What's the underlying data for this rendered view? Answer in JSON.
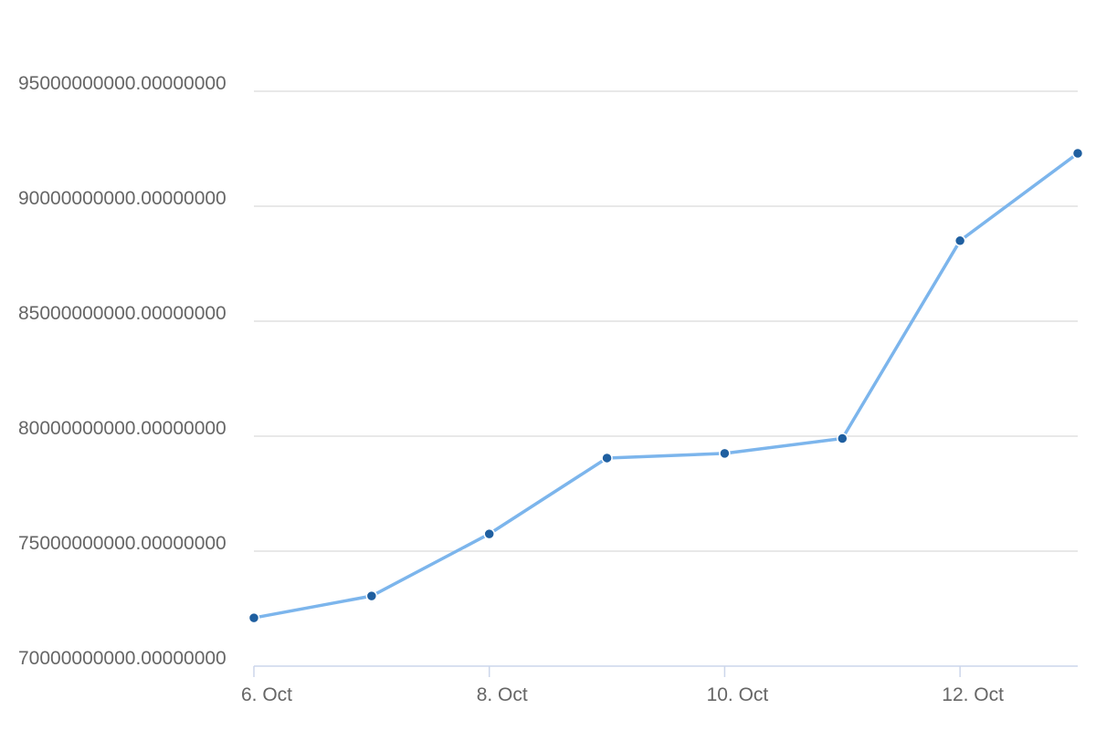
{
  "chart_data": {
    "type": "line",
    "title": "",
    "xlabel": "",
    "ylabel": "",
    "x": [
      "6. Oct",
      "7. Oct",
      "8. Oct",
      "9. Oct",
      "10. Oct",
      "11. Oct",
      "12. Oct",
      "13. Oct"
    ],
    "x_tick_labels": [
      "6. Oct",
      "8. Oct",
      "10. Oct",
      "12. Oct"
    ],
    "y_tick_labels": [
      "70000000000.00000000",
      "75000000000.00000000",
      "80000000000.00000000",
      "85000000000.00000000",
      "90000000000.00000000",
      "95000000000.00000000"
    ],
    "y_ticks": [
      70000000000,
      75000000000,
      80000000000,
      85000000000,
      90000000000,
      95000000000
    ],
    "ylim": [
      70000000000,
      95000000000
    ],
    "grid": true,
    "legend": "none",
    "series": [
      {
        "values": [
          72100000000,
          73050000000,
          75750000000,
          79050000000,
          79250000000,
          79900000000,
          88500000000,
          92300000000
        ]
      }
    ],
    "colors": {
      "line": "#7cb5ec",
      "marker": "#1f5fa0",
      "grid": "#e0e0e0",
      "axis": "#ccd6eb",
      "label": "#666666"
    }
  }
}
